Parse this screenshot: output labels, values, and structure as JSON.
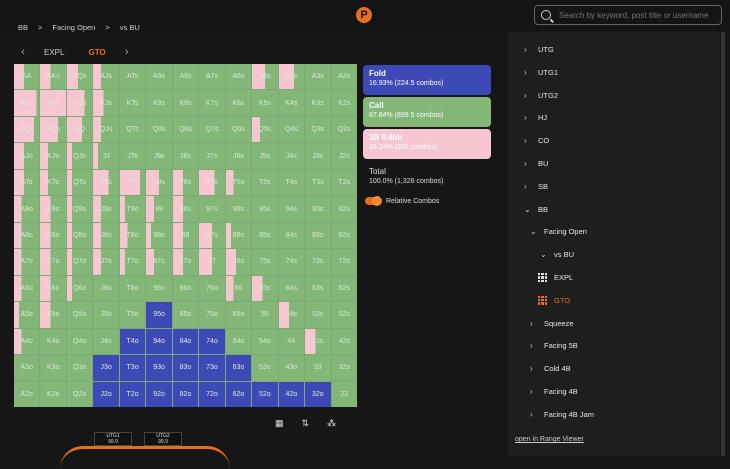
{
  "search": {
    "placeholder": "Search by keyword, post title or username"
  },
  "logo_text": "P",
  "breadcrumb": [
    "BB",
    ">",
    "Facing Open",
    ">",
    "vs BU"
  ],
  "tabs": {
    "prev": "‹",
    "next": "›",
    "items": [
      "EXPL",
      "GTO"
    ],
    "active": "GTO"
  },
  "actions": {
    "fold": {
      "title": "Fold",
      "detail": "16.93% (224.5 combos)"
    },
    "call": {
      "title": "Call",
      "detail": "67.84% (899.5 combos)"
    },
    "raise": {
      "title": "3B 9.4bb",
      "detail": "15.24% (202 combos)"
    }
  },
  "total": {
    "title": "Total",
    "detail": "100.0% (1,326 combos)"
  },
  "relative_combos": {
    "label": "Relative Combos",
    "enabled": true
  },
  "tools": {
    "table_icon": "table-icon",
    "sort_icon": "sort-icon",
    "chips_icon": "chips-icon"
  },
  "seats": [
    {
      "name": "UTG1",
      "stack": "99.9"
    },
    {
      "name": "UTG2",
      "stack": "99.9"
    }
  ],
  "colors": {
    "fold": "#3d4ab6",
    "call": "#82b777",
    "raise": "#f6c7d0",
    "accent": "#e8701c"
  },
  "grid_labels": [
    [
      "AA",
      "AKs",
      "AQs",
      "AJs",
      "ATs",
      "A9s",
      "A8s",
      "A7s",
      "A6s",
      "A5s",
      "A4s",
      "A3s",
      "A2s"
    ],
    [
      "AKo",
      "KK",
      "KQs",
      "KJs",
      "KTs",
      "K9s",
      "K8s",
      "K7s",
      "K6s",
      "K5s",
      "K4s",
      "K3s",
      "K2s"
    ],
    [
      "AQo",
      "KQo",
      "QQ",
      "QJs",
      "QTs",
      "Q9s",
      "Q8s",
      "Q7s",
      "Q6s",
      "Q5s",
      "Q4s",
      "Q3s",
      "Q2s"
    ],
    [
      "AJo",
      "KJo",
      "QJo",
      "JJ",
      "JTs",
      "J9s",
      "J8s",
      "J7s",
      "J6s",
      "J5s",
      "J4s",
      "J3s",
      "J2s"
    ],
    [
      "ATo",
      "KTo",
      "QTo",
      "JTo",
      "TT",
      "T9s",
      "T8s",
      "T7s",
      "T6s",
      "T5s",
      "T4s",
      "T3s",
      "T2s"
    ],
    [
      "A9o",
      "K9o",
      "Q9o",
      "J9o",
      "T9o",
      "99",
      "98s",
      "97s",
      "96s",
      "95s",
      "94s",
      "93s",
      "92s"
    ],
    [
      "A8o",
      "K8o",
      "Q8o",
      "J8o",
      "T8o",
      "98o",
      "88",
      "87s",
      "86s",
      "85s",
      "84s",
      "83s",
      "82s"
    ],
    [
      "A7o",
      "K7o",
      "Q7o",
      "J7o",
      "T7o",
      "97o",
      "87o",
      "77",
      "76s",
      "75s",
      "74s",
      "73s",
      "72s"
    ],
    [
      "A6o",
      "K6o",
      "Q6o",
      "J6o",
      "T6o",
      "96o",
      "86o",
      "76o",
      "66",
      "65s",
      "64s",
      "63s",
      "62s"
    ],
    [
      "A5o",
      "K5o",
      "Q5o",
      "J5o",
      "T5o",
      "95o",
      "85o",
      "75o",
      "65o",
      "55",
      "54s",
      "53s",
      "52s"
    ],
    [
      "A4o",
      "K4o",
      "Q4o",
      "J4o",
      "T4o",
      "94o",
      "84o",
      "74o",
      "64o",
      "54o",
      "44",
      "43s",
      "42s"
    ],
    [
      "A3o",
      "K3o",
      "Q3o",
      "J3o",
      "T3o",
      "93o",
      "83o",
      "73o",
      "63o",
      "53o",
      "43o",
      "33",
      "32s"
    ],
    [
      "A2o",
      "K2o",
      "Q2o",
      "J2o",
      "T2o",
      "92o",
      "82o",
      "72o",
      "62o",
      "52o",
      "42o",
      "32o",
      "22"
    ]
  ],
  "grid_strategy": [
    [
      [
        0,
        0.6,
        0.4
      ],
      [
        0,
        0.6,
        0.4
      ],
      [
        0,
        0.55,
        0.45
      ],
      [
        0,
        0.7,
        0.3
      ],
      [
        0,
        1,
        0
      ],
      [
        0,
        1,
        0
      ],
      [
        0,
        1,
        0
      ],
      [
        0,
        1,
        0
      ],
      [
        0,
        1,
        0
      ],
      [
        0,
        0.5,
        0.5
      ],
      [
        0,
        0.4,
        0.6
      ],
      [
        0,
        1,
        0
      ],
      [
        0,
        1,
        0
      ]
    ],
    [
      [
        0,
        0.1,
        0.9
      ],
      [
        0,
        0,
        1
      ],
      [
        0,
        0.3,
        0.7
      ],
      [
        0,
        0.6,
        0.4
      ],
      [
        0,
        1,
        0
      ],
      [
        0,
        1,
        0
      ],
      [
        0,
        1,
        0
      ],
      [
        0,
        1,
        0
      ],
      [
        0,
        1,
        0
      ],
      [
        0,
        1,
        0
      ],
      [
        0,
        1,
        0
      ],
      [
        0,
        1,
        0
      ],
      [
        0,
        1,
        0
      ]
    ],
    [
      [
        0,
        0.2,
        0.8
      ],
      [
        0,
        0.3,
        0.7
      ],
      [
        0,
        0.4,
        0.6
      ],
      [
        0,
        0.7,
        0.3
      ],
      [
        0,
        1,
        0
      ],
      [
        0,
        1,
        0
      ],
      [
        0,
        1,
        0
      ],
      [
        0,
        1,
        0
      ],
      [
        0,
        1,
        0
      ],
      [
        0,
        0.7,
        0.3
      ],
      [
        0,
        1,
        0
      ],
      [
        0,
        1,
        0
      ],
      [
        0,
        1,
        0
      ]
    ],
    [
      [
        0,
        0.6,
        0.4
      ],
      [
        0,
        0.7,
        0.3
      ],
      [
        0,
        0.8,
        0.2
      ],
      [
        0,
        0.8,
        0.2
      ],
      [
        0,
        1,
        0
      ],
      [
        0,
        1,
        0
      ],
      [
        0,
        1,
        0
      ],
      [
        0,
        1,
        0
      ],
      [
        0,
        1,
        0
      ],
      [
        0,
        1,
        0
      ],
      [
        0,
        1,
        0
      ],
      [
        0,
        1,
        0
      ],
      [
        0,
        1,
        0
      ]
    ],
    [
      [
        0,
        0.6,
        0.4
      ],
      [
        0,
        0.7,
        0.3
      ],
      [
        0,
        0.8,
        0.2
      ],
      [
        0,
        0.4,
        0.6
      ],
      [
        0,
        0.2,
        0.8
      ],
      [
        0,
        0.5,
        0.5
      ],
      [
        0,
        0.6,
        0.4
      ],
      [
        0,
        0.4,
        0.6
      ],
      [
        0,
        0.7,
        0.3
      ],
      [
        0,
        1,
        0
      ],
      [
        0,
        1,
        0
      ],
      [
        0,
        1,
        0
      ],
      [
        0,
        1,
        0
      ]
    ],
    [
      [
        0,
        0.7,
        0.3
      ],
      [
        0,
        0.6,
        0.4
      ],
      [
        0,
        0.8,
        0.2
      ],
      [
        0,
        0.7,
        0.3
      ],
      [
        0,
        0.8,
        0.2
      ],
      [
        0,
        0.7,
        0.3
      ],
      [
        0,
        0.6,
        0.4
      ],
      [
        0,
        1,
        0
      ],
      [
        0,
        1,
        0
      ],
      [
        0,
        1,
        0
      ],
      [
        0,
        1,
        0
      ],
      [
        0,
        1,
        0
      ],
      [
        0,
        1,
        0
      ]
    ],
    [
      [
        0,
        0.7,
        0.3
      ],
      [
        0,
        0.6,
        0.4
      ],
      [
        0,
        0.8,
        0.2
      ],
      [
        0,
        0.7,
        0.3
      ],
      [
        0,
        0.7,
        0.3
      ],
      [
        0,
        0.8,
        0.2
      ],
      [
        0,
        0.6,
        0.4
      ],
      [
        0,
        0.5,
        0.5
      ],
      [
        0,
        0.8,
        0.2
      ],
      [
        0,
        1,
        0
      ],
      [
        0,
        1,
        0
      ],
      [
        0,
        1,
        0
      ],
      [
        0,
        1,
        0
      ]
    ],
    [
      [
        0,
        0.7,
        0.3
      ],
      [
        0,
        0.6,
        0.4
      ],
      [
        0,
        0.8,
        0.2
      ],
      [
        0,
        0.7,
        0.3
      ],
      [
        0,
        0.8,
        0.2
      ],
      [
        0,
        0.7,
        0.3
      ],
      [
        0,
        0.6,
        0.4
      ],
      [
        0,
        0.5,
        0.5
      ],
      [
        0,
        0.6,
        0.4
      ],
      [
        0,
        1,
        0
      ],
      [
        0,
        1,
        0
      ],
      [
        0,
        1,
        0
      ],
      [
        0,
        1,
        0
      ]
    ],
    [
      [
        0,
        0.7,
        0.3
      ],
      [
        0,
        0.6,
        0.4
      ],
      [
        0,
        0.8,
        0.2
      ],
      [
        0,
        1,
        0
      ],
      [
        0,
        1,
        0
      ],
      [
        0,
        1,
        0
      ],
      [
        0,
        1,
        0
      ],
      [
        0,
        1,
        0
      ],
      [
        0,
        0.7,
        0.3
      ],
      [
        0,
        0.6,
        0.4
      ],
      [
        0,
        1,
        0
      ],
      [
        0,
        1,
        0
      ],
      [
        0,
        1,
        0
      ]
    ],
    [
      [
        0,
        0.8,
        0.2
      ],
      [
        0,
        0.6,
        0.4
      ],
      [
        0,
        1,
        0
      ],
      [
        0,
        1,
        0
      ],
      [
        0,
        1,
        0
      ],
      [
        1,
        0,
        0
      ],
      [
        0,
        1,
        0
      ],
      [
        0,
        1,
        0
      ],
      [
        0,
        1,
        0
      ],
      [
        0,
        1,
        0
      ],
      [
        0,
        0.6,
        0.4
      ],
      [
        0,
        1,
        0
      ],
      [
        0,
        1,
        0
      ]
    ],
    [
      [
        0,
        0.7,
        0.3
      ],
      [
        0,
        1,
        0
      ],
      [
        0,
        1,
        0
      ],
      [
        0,
        1,
        0
      ],
      [
        1,
        0,
        0
      ],
      [
        1,
        0,
        0
      ],
      [
        1,
        0,
        0
      ],
      [
        1,
        0,
        0
      ],
      [
        0,
        1,
        0
      ],
      [
        0,
        1,
        0
      ],
      [
        0,
        1,
        0
      ],
      [
        0,
        0.6,
        0.4
      ],
      [
        0,
        1,
        0
      ]
    ],
    [
      [
        0,
        1,
        0
      ],
      [
        0,
        1,
        0
      ],
      [
        0,
        1,
        0
      ],
      [
        1,
        0,
        0
      ],
      [
        1,
        0,
        0
      ],
      [
        1,
        0,
        0
      ],
      [
        1,
        0,
        0
      ],
      [
        1,
        0,
        0
      ],
      [
        1,
        0,
        0
      ],
      [
        0,
        1,
        0
      ],
      [
        0,
        1,
        0
      ],
      [
        0,
        1,
        0
      ],
      [
        0,
        1,
        0
      ]
    ],
    [
      [
        0,
        1,
        0
      ],
      [
        0,
        1,
        0
      ],
      [
        0,
        1,
        0
      ],
      [
        1,
        0,
        0
      ],
      [
        1,
        0,
        0
      ],
      [
        1,
        0,
        0
      ],
      [
        1,
        0,
        0
      ],
      [
        1,
        0,
        0
      ],
      [
        1,
        0,
        0
      ],
      [
        1,
        0,
        0
      ],
      [
        1,
        0,
        0
      ],
      [
        1,
        0,
        0
      ],
      [
        0,
        1,
        0
      ]
    ]
  ],
  "tree": [
    {
      "label": "UTG",
      "indent": 0,
      "chev": "›",
      "kind": "node"
    },
    {
      "label": "UTG1",
      "indent": 0,
      "chev": "›",
      "kind": "node"
    },
    {
      "label": "UTG2",
      "indent": 0,
      "chev": "›",
      "kind": "node"
    },
    {
      "label": "HJ",
      "indent": 0,
      "chev": "›",
      "kind": "node"
    },
    {
      "label": "CO",
      "indent": 0,
      "chev": "›",
      "kind": "node"
    },
    {
      "label": "BU",
      "indent": 0,
      "chev": "›",
      "kind": "node"
    },
    {
      "label": "SB",
      "indent": 0,
      "chev": "›",
      "kind": "node"
    },
    {
      "label": "BB",
      "indent": 0,
      "chev": "⌄",
      "kind": "node"
    },
    {
      "label": "Facing Open",
      "indent": 1,
      "chev": "⌄",
      "kind": "node"
    },
    {
      "label": "vs BU",
      "indent": 2,
      "chev": "⌄",
      "kind": "node"
    },
    {
      "label": "EXPL",
      "indent": 3,
      "chev": "",
      "kind": "leaf"
    },
    {
      "label": "GTO",
      "indent": 3,
      "chev": "",
      "kind": "leaf",
      "active": true
    },
    {
      "label": "Squeeze",
      "indent": 1,
      "chev": "›",
      "kind": "node"
    },
    {
      "label": "Facing 5B",
      "indent": 1,
      "chev": "›",
      "kind": "node"
    },
    {
      "label": "Cold 4B",
      "indent": 1,
      "chev": "›",
      "kind": "node"
    },
    {
      "label": "Facing 4B",
      "indent": 1,
      "chev": "›",
      "kind": "node"
    },
    {
      "label": "Facing 4B Jam",
      "indent": 1,
      "chev": "›",
      "kind": "node"
    }
  ],
  "open_link": "open in Range Viewer"
}
